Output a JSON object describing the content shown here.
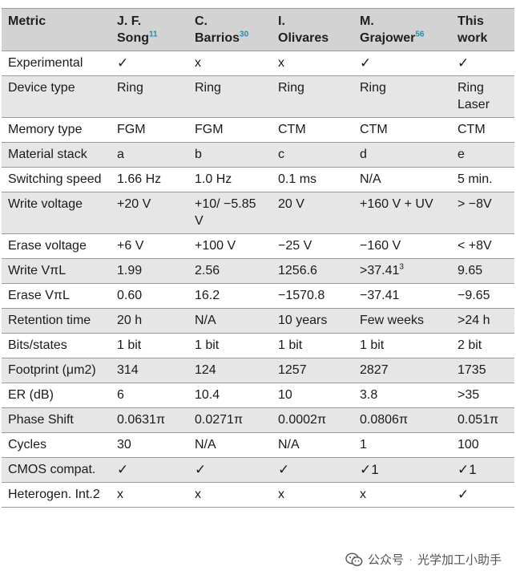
{
  "header": {
    "metric": "Metric",
    "cols": [
      {
        "line1": "J. F.",
        "line2": "Song",
        "ref": "11"
      },
      {
        "line1": "C.",
        "line2": "Barrios",
        "ref": "30"
      },
      {
        "line1": "I.",
        "line2": "Olivares",
        "ref": ""
      },
      {
        "line1": "M.",
        "line2": "Grajower",
        "ref": "56"
      },
      {
        "line1": "This",
        "line2": "work",
        "ref": ""
      }
    ]
  },
  "rows": [
    {
      "metric": "Experimental",
      "values": [
        "✓",
        "x",
        "x",
        "✓",
        "✓"
      ]
    },
    {
      "metric": "Device type",
      "values": [
        "Ring",
        "Ring",
        "Ring",
        "Ring",
        "Ring Laser"
      ]
    },
    {
      "metric": "Memory type",
      "values": [
        "FGM",
        "FGM",
        "CTM",
        "CTM",
        "CTM"
      ]
    },
    {
      "metric": "Material stack",
      "values": [
        "a",
        "b",
        "c",
        "d",
        "e"
      ]
    },
    {
      "metric": "Switching speed",
      "values": [
        "1.66 Hz",
        "1.0 Hz",
        "0.1 ms",
        "N/A",
        "5 min."
      ]
    },
    {
      "metric": "Write voltage",
      "values": [
        "+20 V",
        "+10/ −5.85 V",
        "20 V",
        "+160 V + UV",
        "> −8V"
      ]
    },
    {
      "metric": "Erase voltage",
      "values": [
        "+6 V",
        "+100 V",
        "−25 V",
        "−160 V",
        "< +8V"
      ]
    },
    {
      "metric": "Write VπL",
      "values": [
        "1.99",
        "2.56",
        "1256.6",
        ">37.41",
        "9.65"
      ],
      "v3sup": "3"
    },
    {
      "metric": "Erase VπL",
      "values": [
        "0.60",
        "16.2",
        "−1570.8",
        "−37.41",
        "−9.65"
      ]
    },
    {
      "metric": "Retention time",
      "values": [
        "20 h",
        "N/A",
        "10 years",
        "Few weeks",
        ">24 h"
      ]
    },
    {
      "metric": "Bits/states",
      "values": [
        "1 bit",
        "1 bit",
        "1 bit",
        "1 bit",
        "2 bit"
      ]
    },
    {
      "metric": "Footprint (μm2)",
      "values": [
        "314",
        "124",
        "1257",
        "2827",
        "1735"
      ]
    },
    {
      "metric": "ER (dB)",
      "values": [
        "6",
        "10.4",
        "10",
        "3.8",
        ">35"
      ]
    },
    {
      "metric": "Phase Shift",
      "values": [
        "0.0631π",
        "0.0271π",
        "0.0002π",
        "0.0806π",
        "0.051π"
      ]
    },
    {
      "metric": "Cycles",
      "values": [
        "30",
        "N/A",
        "N/A",
        "1",
        "100"
      ]
    },
    {
      "metric": "CMOS compat.",
      "values": [
        "✓",
        "✓",
        "✓",
        "✓1",
        "✓1"
      ]
    },
    {
      "metric": "Heterogen. Int.2",
      "values": [
        "x",
        "x",
        "x",
        "x",
        "✓"
      ]
    }
  ],
  "watermark": {
    "brand": "公众号",
    "separator": "·",
    "name": "光学加工小助手"
  }
}
